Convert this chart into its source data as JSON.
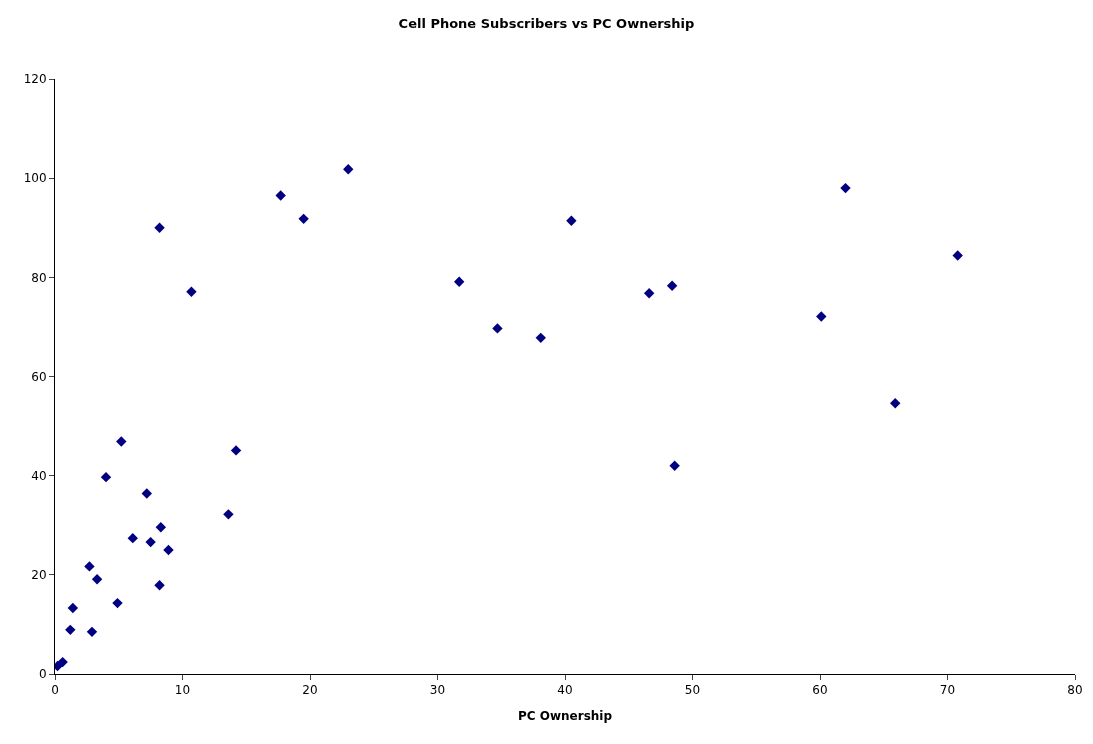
{
  "chart_data": {
    "type": "scatter",
    "title": "Cell Phone Subscribers vs PC Ownership",
    "xlabel": "PC Ownership",
    "x": [
      0.2,
      0.6,
      1.2,
      1.4,
      2.9,
      2.7,
      3.3,
      4.9,
      4.0,
      5.2,
      6.1,
      7.2,
      7.5,
      8.2,
      8.3,
      8.9,
      13.6,
      14.2,
      8.2,
      10.7,
      17.7,
      23.0,
      19.5,
      31.7,
      34.7,
      38.1,
      40.5,
      46.6,
      48.4,
      48.6,
      60.1,
      62.0,
      65.9,
      70.8
    ],
    "values": [
      1.6,
      2.4,
      8.9,
      13.3,
      8.5,
      21.7,
      19.1,
      14.3,
      39.7,
      46.9,
      27.4,
      36.4,
      26.6,
      17.9,
      29.6,
      25.0,
      32.2,
      45.1,
      90,
      77.1,
      96.5,
      101.8,
      91.8,
      79.1,
      69.7,
      67.8,
      91.4,
      76.8,
      78.3,
      42,
      72.1,
      98.0,
      54.6,
      84.4
    ],
    "color": "#000080",
    "marker": "diamond",
    "xlim": [
      0,
      80
    ],
    "xticks": [
      0,
      10,
      20,
      30,
      40,
      50,
      60,
      70,
      80
    ],
    "ylim": [
      0,
      120
    ],
    "yticks": [
      0,
      20,
      40,
      60,
      80,
      100,
      120
    ],
    "grid": false,
    "legend": false
  }
}
